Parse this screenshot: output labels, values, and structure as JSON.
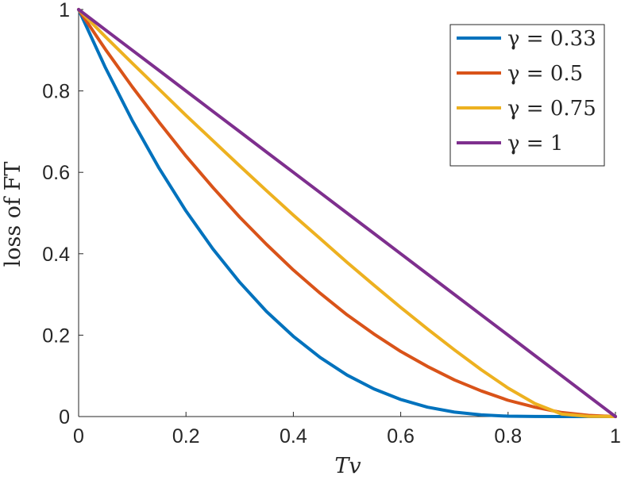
{
  "chart_data": {
    "type": "line",
    "title": "",
    "xlabel": "Tv",
    "ylabel": "loss of FT",
    "xlim": [
      0,
      1
    ],
    "ylim": [
      0,
      1
    ],
    "xticks": [
      "0",
      "0.2",
      "0.4",
      "0.6",
      "0.8",
      "1"
    ],
    "yticks": [
      "0",
      "0.2",
      "0.4",
      "0.6",
      "0.8",
      "1"
    ],
    "grid": false,
    "legend_position": "top-right",
    "x": [
      0,
      0.05,
      0.1,
      0.15,
      0.2,
      0.25,
      0.3,
      0.35,
      0.4,
      0.45,
      0.5,
      0.55,
      0.6,
      0.65,
      0.7,
      0.75,
      0.8,
      0.85,
      0.9,
      0.95,
      1
    ],
    "series": [
      {
        "name": "γ = 0.33",
        "color": "#0072BD",
        "values": [
          1,
          0.857,
          0.727,
          0.61,
          0.505,
          0.412,
          0.33,
          0.258,
          0.197,
          0.145,
          0.102,
          0.068,
          0.042,
          0.023,
          0.011,
          0.004,
          0.001,
          0.0002,
          0.0,
          0,
          0
        ]
      },
      {
        "name": "γ = 0.5",
        "color": "#D95319",
        "values": [
          1,
          0.902,
          0.81,
          0.723,
          0.64,
          0.563,
          0.49,
          0.423,
          0.36,
          0.303,
          0.25,
          0.203,
          0.16,
          0.123,
          0.09,
          0.063,
          0.04,
          0.023,
          0.01,
          0.003,
          0
        ]
      },
      {
        "name": "γ = 0.75",
        "color": "#EDB120",
        "values": [
          1,
          0.933,
          0.868,
          0.804,
          0.74,
          0.678,
          0.616,
          0.555,
          0.495,
          0.437,
          0.379,
          0.323,
          0.268,
          0.215,
          0.164,
          0.115,
          0.07,
          0.032,
          0.006,
          0.0003,
          0
        ]
      },
      {
        "name": "γ = 1",
        "color": "#7E2F8E",
        "values": [
          1,
          0.95,
          0.9,
          0.85,
          0.8,
          0.75,
          0.7,
          0.65,
          0.6,
          0.55,
          0.5,
          0.45,
          0.4,
          0.35,
          0.3,
          0.25,
          0.2,
          0.15,
          0.1,
          0.05,
          0
        ]
      }
    ]
  }
}
